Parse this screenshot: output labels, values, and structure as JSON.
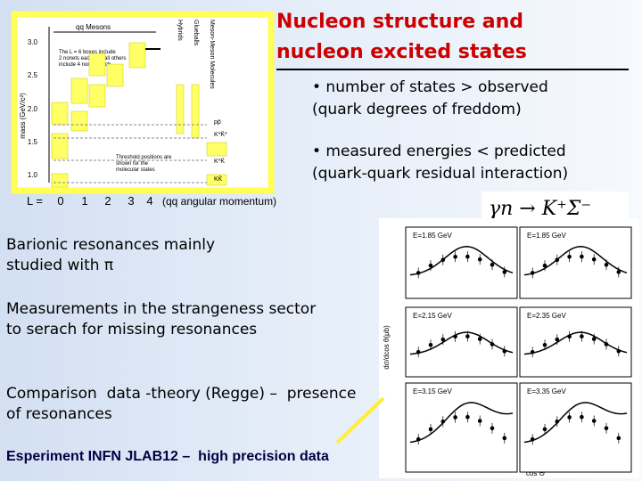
{
  "title": {
    "lines": [
      "Nucleon structure and",
      "nucleon excited states"
    ]
  },
  "bullets": [
    {
      "lines": [
        "• number of states > observed",
        "(quark degrees of freddom)"
      ]
    },
    {
      "lines": [
        "• measured energies < predicted",
        "(quark-quark residual interaction)"
      ]
    }
  ],
  "paragraphs": [
    {
      "lines": [
        "Barionic resonances mainly",
        "studied with π"
      ]
    },
    {
      "lines": [
        "Measurements in the strangeness sector",
        "to serach for missing resonances"
      ]
    },
    {
      "lines": [
        "Comparison  data -theory (Regge) –  presence",
        "of resonances"
      ]
    }
  ],
  "footer": "Esperiment INFN JLAB12 –  high precision data",
  "mass_figure": {
    "header": "qq Mesons",
    "y_label": "mass (GeV/c²)",
    "y_ticks": [
      "3.0",
      "2.5",
      "2.0",
      "1.5",
      "1.0"
    ],
    "side_labels": [
      "Hybrids",
      "Glueballs",
      "Meson-Meson Molecules"
    ],
    "notes": [
      "The L = 6 boxes include",
      "2 nonets each and all others",
      "include 4 nonets each",
      "Threshold positions are",
      "shown for the",
      "molecular states"
    ],
    "thresholds": [
      "pp̄",
      "K*K̄*",
      "K*K̄",
      "KK̄"
    ],
    "x_prefix": "L =",
    "x_ticks": [
      "0",
      "1",
      "2",
      "3",
      "4"
    ],
    "x_note": "(qq angular momentum)"
  },
  "cross_section_figure": {
    "reaction": "γn → K⁺Σ⁻",
    "y_label": "dσ/dcos θ(μb)",
    "x_label": "cos Θ",
    "panels": [
      "E=1.85 GeV",
      "E=1.85 GeV",
      "E=2.15 GeV",
      "E=2.35 GeV",
      "E=3.15 GeV",
      "E=3.35 GeV"
    ]
  }
}
